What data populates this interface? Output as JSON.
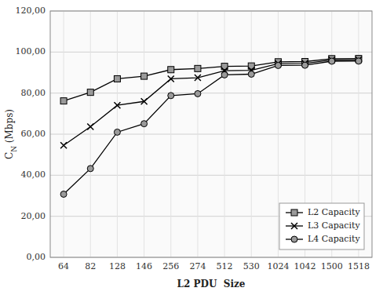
{
  "chart_data": {
    "type": "line",
    "x_label": "L2 PDU  Size",
    "y_label": "CN (Mbps)",
    "categories": [
      "64",
      "82",
      "128",
      "146",
      "256",
      "274",
      "512",
      "530",
      "1024",
      "1042",
      "1500",
      "1518"
    ],
    "series": [
      {
        "name": "L2 Capacity",
        "color": "#000000",
        "marker": "square",
        "values": [
          76.19,
          80.39,
          86.96,
          88.24,
          91.43,
          91.97,
          93.02,
          93.2,
          95.24,
          95.35,
          96.77,
          96.83
        ]
      },
      {
        "name": "L3 Capacity",
        "color": "#000000",
        "marker": "x",
        "values": [
          54.55,
          63.64,
          74.07,
          75.95,
          86.96,
          87.5,
          90.91,
          91.11,
          94.34,
          94.44,
          96.15,
          96.2
        ]
      },
      {
        "name": "L4 Capacity",
        "color": "#000000",
        "marker": "circle",
        "values": [
          30.77,
          43.24,
          60.98,
          65.09,
          78.79,
          79.71,
          88.89,
          89.23,
          93.46,
          93.58,
          95.54,
          95.6
        ]
      }
    ],
    "ylim": [
      0,
      120
    ],
    "yticks": [
      {
        "value": 0,
        "label": "0,00"
      },
      {
        "value": 20,
        "label": "20,00"
      },
      {
        "value": 40,
        "label": "40,00"
      },
      {
        "value": 60,
        "label": "60,00"
      },
      {
        "value": 80,
        "label": "80,00"
      },
      {
        "value": 100,
        "label": "100,00"
      },
      {
        "value": 120,
        "label": "120,00"
      }
    ],
    "grid": true,
    "legend": "lower right"
  }
}
